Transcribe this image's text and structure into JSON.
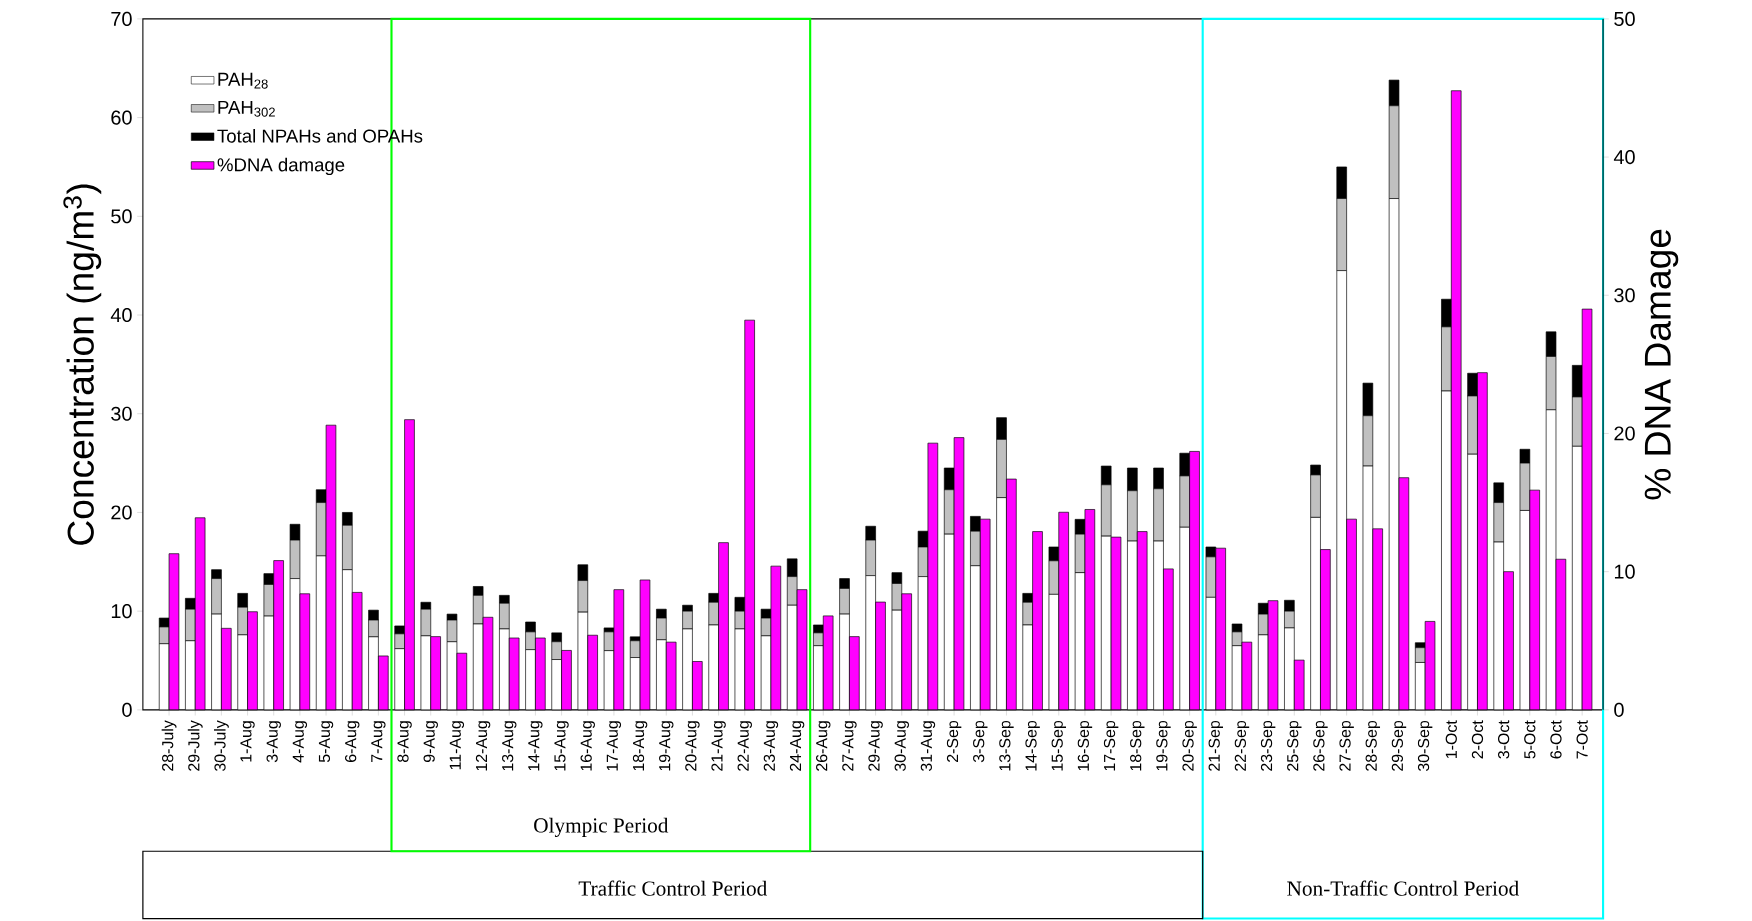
{
  "chart_data": {
    "type": "bar",
    "stacked": true,
    "legend": "top left",
    "ylabel": "Concentration (ng/m$^{3}$)",
    "y2label": "% DNA Damage",
    "categories": [
      "28-July",
      "29-July",
      "30-July",
      "1-Aug",
      "3-Aug",
      "4-Aug",
      "5-Aug",
      "6-Aug",
      "7-Aug",
      "8-Aug",
      "9-Aug",
      "11-Aug",
      "12-Aug",
      "13-Aug",
      "14-Aug",
      "15-Aug",
      "16-Aug",
      "17-Aug",
      "18-Aug",
      "19-Aug",
      "20-Aug",
      "21-Aug",
      "22-Aug",
      "23-Aug",
      "24-Aug",
      "26-Aug",
      "27-Aug",
      "29-Aug",
      "30-Aug",
      "31-Aug",
      "2-Sep",
      "3-Sep",
      "13-Sep",
      "14-Sep",
      "15-Sep",
      "16-Sep",
      "17-Sep",
      "18-Sep",
      "19-Sep",
      "20-Sep",
      "21-Sep",
      "22-Sep",
      "23-Sep",
      "25-Sep",
      "26-Sep",
      "27-Sep",
      "28-Sep",
      "29-Sep",
      "30-Sep",
      "1-Oct",
      "2-Oct",
      "3-Oct",
      "5-Oct",
      "6-Oct",
      "7-Oct"
    ],
    "series": [
      {
        "name": "PAH$_{28}$",
        "color": "#ffffff",
        "values": [
          6.7,
          7.0,
          9.7,
          7.6,
          9.5,
          13.3,
          15.6,
          14.2,
          7.4,
          6.2,
          7.5,
          6.9,
          8.7,
          8.2,
          6.1,
          5.1,
          9.9,
          6.0,
          5.3,
          7.1,
          8.2,
          8.6,
          8.2,
          7.5,
          10.6,
          6.5,
          9.7,
          13.6,
          10.1,
          13.5,
          17.8,
          14.6,
          21.5,
          8.6,
          11.7,
          13.9,
          17.6,
          17.1,
          17.1,
          18.5,
          11.4,
          6.5,
          7.6,
          8.3,
          19.5,
          44.5,
          24.7,
          51.8,
          4.8,
          32.3,
          25.9,
          17.0,
          20.2,
          30.4,
          26.7
        ]
      },
      {
        "name": "PAH$_{302}$",
        "color": "#c0c0c0",
        "values": [
          1.7,
          3.2,
          3.6,
          2.8,
          3.2,
          3.9,
          5.4,
          4.5,
          1.7,
          1.5,
          2.7,
          2.2,
          2.9,
          2.6,
          1.8,
          1.8,
          3.2,
          1.9,
          1.7,
          2.2,
          1.8,
          2.3,
          1.8,
          1.8,
          2.9,
          1.3,
          2.6,
          3.6,
          2.7,
          3.0,
          4.5,
          3.5,
          5.9,
          2.3,
          3.4,
          3.9,
          5.2,
          5.1,
          5.3,
          5.2,
          4.1,
          1.4,
          2.1,
          1.7,
          4.3,
          7.3,
          5.1,
          9.4,
          1.5,
          6.5,
          5.9,
          4.0,
          4.8,
          5.4,
          5.0
        ]
      },
      {
        "name": "Total NPAHs and OPAHs",
        "color": "#000000",
        "values": [
          0.9,
          1.1,
          0.9,
          1.4,
          1.1,
          1.6,
          1.3,
          1.3,
          1.0,
          0.8,
          0.7,
          0.6,
          0.9,
          0.8,
          1.0,
          0.9,
          1.6,
          0.4,
          0.4,
          0.9,
          0.6,
          0.9,
          1.4,
          0.9,
          1.8,
          0.8,
          1.0,
          1.4,
          1.1,
          1.6,
          2.2,
          1.5,
          2.2,
          0.9,
          1.4,
          1.5,
          1.9,
          2.3,
          2.1,
          2.3,
          1.0,
          0.8,
          1.1,
          1.1,
          1.0,
          3.2,
          3.3,
          2.6,
          0.5,
          2.8,
          2.3,
          2.0,
          1.4,
          2.5,
          3.2
        ]
      },
      {
        "name": "%DNA damage",
        "color": "#ff00ff",
        "axis": "y2",
        "values": [
          11.3,
          13.9,
          5.9,
          7.1,
          10.8,
          8.4,
          20.6,
          8.5,
          3.9,
          21.0,
          5.3,
          4.1,
          6.7,
          5.2,
          5.2,
          4.3,
          5.4,
          8.7,
          9.4,
          4.9,
          3.5,
          12.1,
          28.2,
          10.4,
          8.7,
          6.8,
          5.3,
          7.8,
          8.4,
          19.3,
          19.7,
          13.8,
          16.7,
          12.9,
          14.3,
          14.5,
          12.5,
          12.9,
          10.2,
          18.7,
          11.7,
          4.9,
          7.9,
          3.6,
          11.6,
          13.8,
          13.1,
          16.8,
          6.4,
          44.8,
          24.4,
          10.0,
          15.9,
          10.9,
          29.0
        ]
      }
    ],
    "ylim": [
      0,
      70
    ],
    "yticks": [
      0,
      10,
      20,
      30,
      40,
      50,
      60,
      70
    ],
    "y2lim": [
      0,
      50
    ],
    "y2ticks": [
      0,
      10,
      20,
      30,
      40,
      50
    ],
    "annotations": [
      "Olympic Period",
      "Traffic Control Period",
      "Non-Traffic Control Period"
    ]
  }
}
